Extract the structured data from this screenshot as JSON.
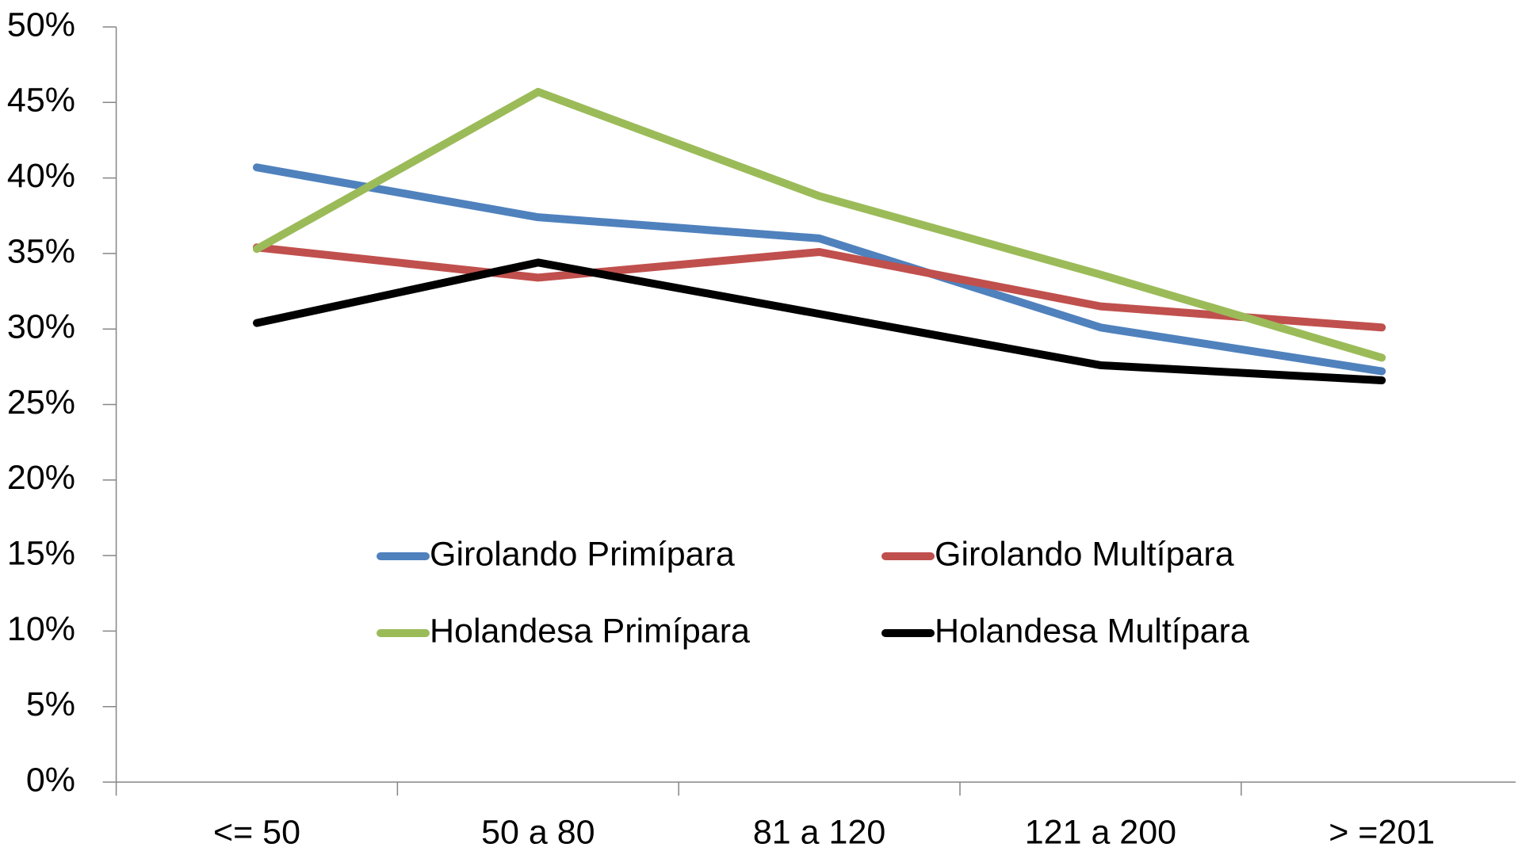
{
  "chart_data": {
    "type": "line",
    "categories": [
      "<= 50",
      "50 a 80",
      "81 a 120",
      "121 a 200",
      "> =201"
    ],
    "series": [
      {
        "name": "Girolando Primípara",
        "color": "#4f81bd",
        "values": [
          40.7,
          37.4,
          36.0,
          30.1,
          27.2
        ]
      },
      {
        "name": "Girolando Multípara",
        "color": "#c0504d",
        "values": [
          35.4,
          33.4,
          35.1,
          31.5,
          30.1
        ]
      },
      {
        "name": "Holandesa Primípara",
        "color": "#9bbb59",
        "values": [
          35.3,
          45.7,
          38.8,
          33.6,
          28.1
        ]
      },
      {
        "name": "Holandesa Multípara",
        "color": "#000000",
        "values": [
          30.4,
          34.4,
          31.0,
          27.6,
          26.6
        ]
      }
    ],
    "ylim": [
      0,
      50
    ],
    "yticks": [
      {
        "value": 0,
        "label": "0%"
      },
      {
        "value": 5,
        "label": "5%"
      },
      {
        "value": 10,
        "label": "10%"
      },
      {
        "value": 15,
        "label": "15%"
      },
      {
        "value": 20,
        "label": "20%"
      },
      {
        "value": 25,
        "label": "25%"
      },
      {
        "value": 30,
        "label": "30%"
      },
      {
        "value": 35,
        "label": "35%"
      },
      {
        "value": 40,
        "label": "40%"
      },
      {
        "value": 45,
        "label": "45%"
      },
      {
        "value": 50,
        "label": "50%"
      }
    ],
    "grid": false
  }
}
